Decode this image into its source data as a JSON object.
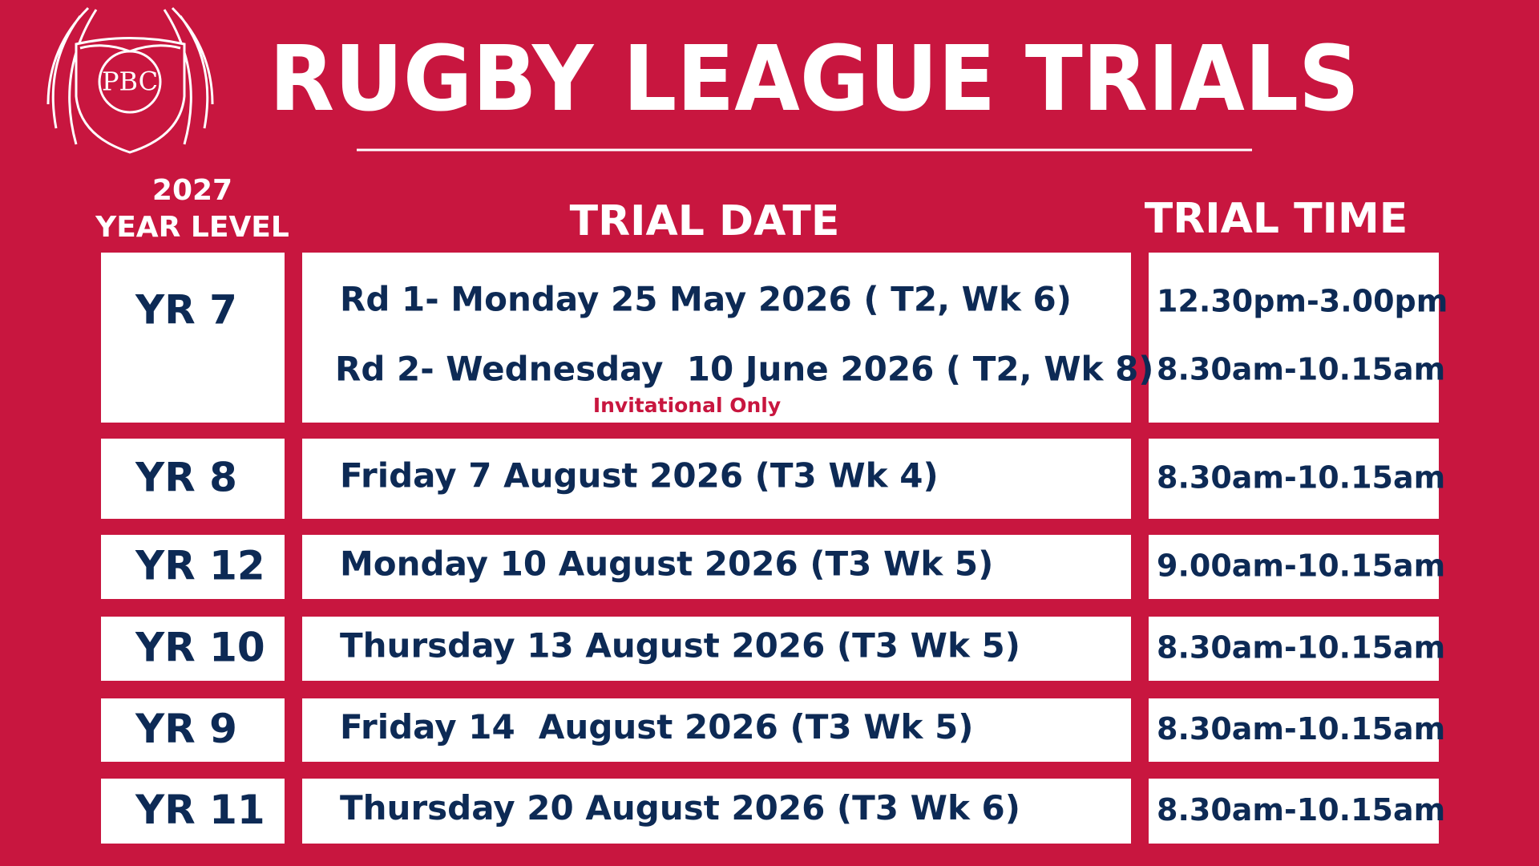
{
  "logo": {
    "text": "PBC"
  },
  "header": {
    "title": "RUGBY LEAGUE TRIALS"
  },
  "table": {
    "columns": {
      "year_line1": "2027",
      "year_line2": "YEAR LEVEL",
      "date": "TRIAL DATE",
      "time": "TRIAL TIME"
    },
    "rows": [
      {
        "year": "YR 7",
        "dates": [
          "Rd 1- Monday 25 May 2026 ( T2, Wk 6)",
          "Rd 2- Wednesday  10 June 2026 ( T2, Wk 8)"
        ],
        "times": [
          "12.30pm-3.00pm",
          "8.30am-10.15am"
        ],
        "note": "Invitational Only"
      },
      {
        "year": "YR 8",
        "dates": [
          "Friday 7 August 2026 (T3 Wk 4)"
        ],
        "times": [
          "8.30am-10.15am"
        ]
      },
      {
        "year": "YR 12",
        "dates": [
          "Monday 10 August 2026 (T3 Wk 5)"
        ],
        "times": [
          "9.00am-10.15am"
        ]
      },
      {
        "year": "YR 10",
        "dates": [
          "Thursday 13 August 2026 (T3 Wk 5)"
        ],
        "times": [
          "8.30am-10.15am"
        ]
      },
      {
        "year": "YR 9",
        "dates": [
          "Friday 14  August 2026 (T3 Wk 5)"
        ],
        "times": [
          "8.30am-10.15am"
        ]
      },
      {
        "year": "YR 11",
        "dates": [
          "Thursday 20 August 2026 (T3 Wk 6)"
        ],
        "times": [
          "8.30am-10.15am"
        ]
      }
    ]
  }
}
